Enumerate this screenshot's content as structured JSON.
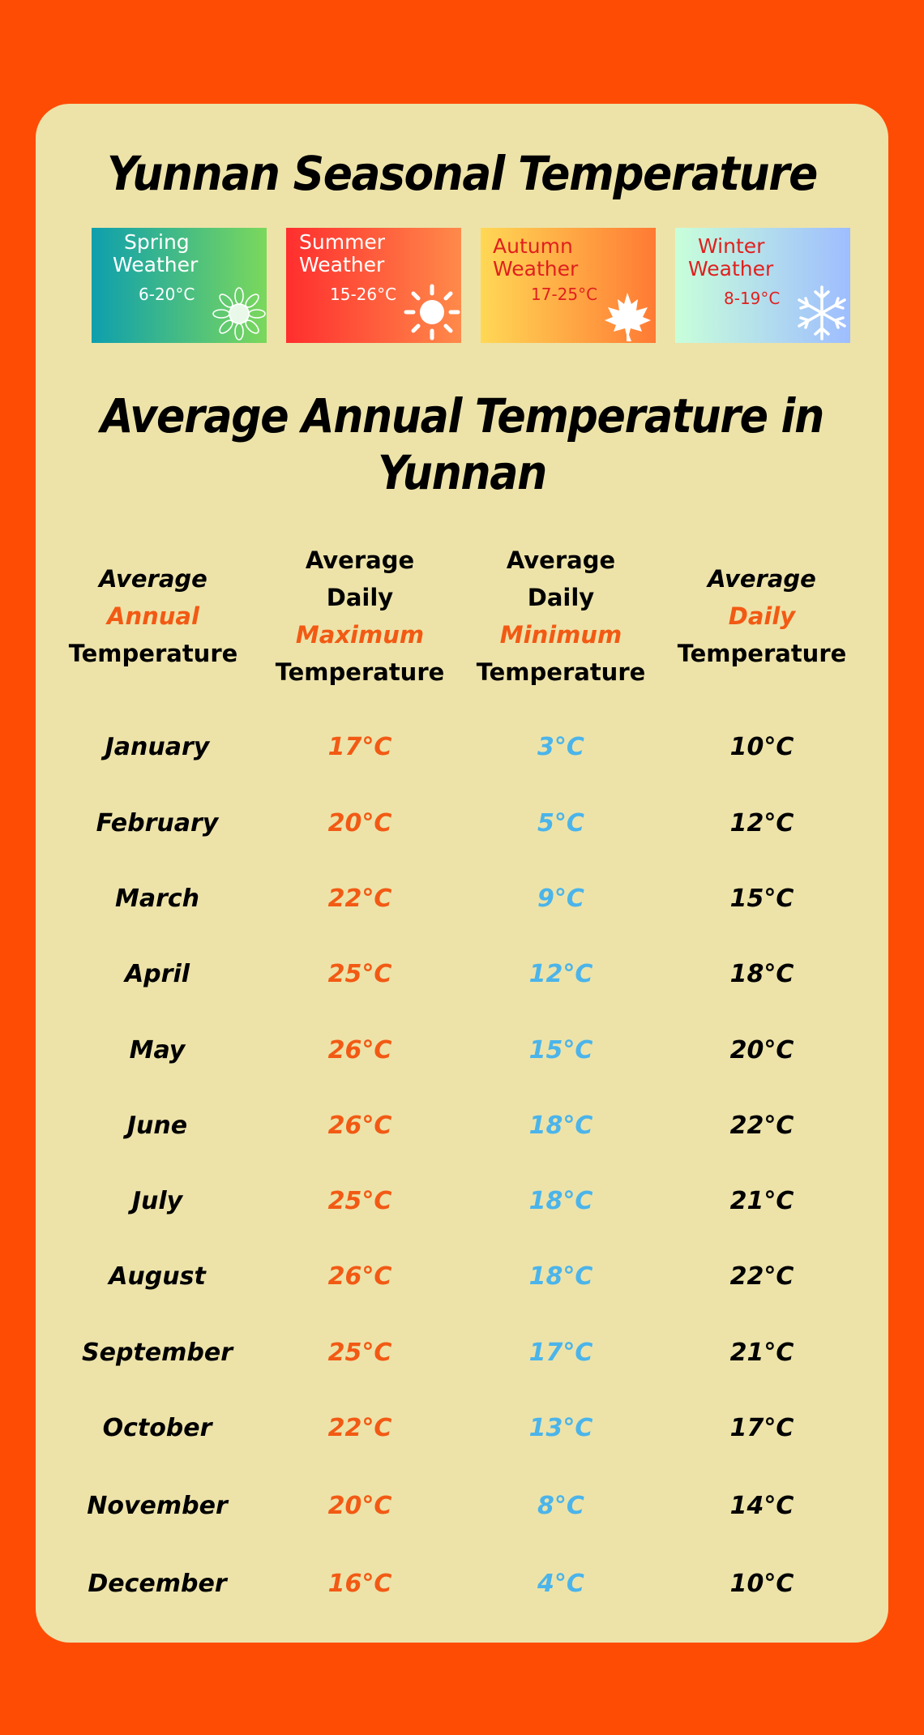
{
  "title": "Yunnan Seasonal Temperature",
  "seasons": [
    {
      "name_line1": "Spring",
      "name_line2": "Weather",
      "range": "6-20°C",
      "icon": "sunflower-icon"
    },
    {
      "name_line1": "Summer",
      "name_line2": "Weather",
      "range": "15-26°C",
      "icon": "sun-icon"
    },
    {
      "name_line1": "Autumn",
      "name_line2": "Weather",
      "range": "17-25°C",
      "icon": "maple-leaf-icon"
    },
    {
      "name_line1": "Winter",
      "name_line2": "Weather",
      "range": "8-19°C",
      "icon": "snowflake-icon"
    }
  ],
  "subtitle_line1": "Average Annual Temperature in",
  "subtitle_line2": "Yunnan",
  "headers": {
    "col1": [
      "Average",
      "Annual",
      "Temperature"
    ],
    "col2": [
      "Average",
      "Daily",
      "Maximum",
      "Temperature"
    ],
    "col3": [
      "Average",
      "Daily",
      "Minimum",
      "Temperature"
    ],
    "col4": [
      "Average",
      "Daily",
      "Temperature"
    ]
  },
  "rows": [
    {
      "month": "January",
      "max": "17°C",
      "min": "3°C",
      "avg": "10°C"
    },
    {
      "month": "February",
      "max": "20°C",
      "min": "5°C",
      "avg": "12°C"
    },
    {
      "month": "March",
      "max": "22°C",
      "min": "9°C",
      "avg": "15°C"
    },
    {
      "month": "April",
      "max": "25°C",
      "min": "12°C",
      "avg": "18°C"
    },
    {
      "month": "May",
      "max": "26°C",
      "min": "15°C",
      "avg": "20°C"
    },
    {
      "month": "June",
      "max": "26°C",
      "min": "18°C",
      "avg": "22°C"
    },
    {
      "month": "July",
      "max": "25°C",
      "min": "18°C",
      "avg": "21°C"
    },
    {
      "month": "August",
      "max": "26°C",
      "min": "18°C",
      "avg": "22°C"
    },
    {
      "month": "September",
      "max": "25°C",
      "min": "17°C",
      "avg": "21°C"
    },
    {
      "month": "October",
      "max": "22°C",
      "min": "13°C",
      "avg": "17°C"
    },
    {
      "month": "November",
      "max": "20°C",
      "min": "8°C",
      "avg": "14°C"
    },
    {
      "month": "December",
      "max": "16°C",
      "min": "4°C",
      "avg": "10°C"
    }
  ],
  "colors": {
    "background": "#FF4C04",
    "card": "#EDE3A9",
    "max_text": "#F25A14",
    "min_text": "#4BB4EA",
    "highlight": "#F25A14"
  }
}
